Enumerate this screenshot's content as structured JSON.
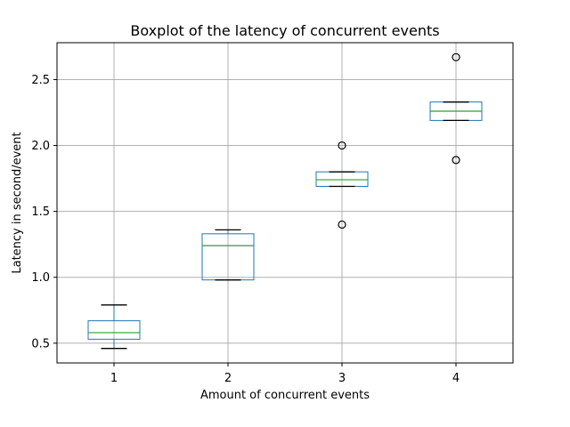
{
  "chart_data": {
    "type": "boxplot",
    "title": "Boxplot of the latency of concurrent events",
    "xlabel": "Amount of concurrent events",
    "ylabel": "Latency in second/event",
    "categories": [
      "1",
      "2",
      "3",
      "4"
    ],
    "ylim": [
      0.35,
      2.78
    ],
    "yticks": [
      0.5,
      1.0,
      1.5,
      2.0,
      2.5
    ],
    "ytick_labels": [
      "0.5",
      "1.0",
      "1.5",
      "2.0",
      "2.5"
    ],
    "grid": true,
    "boxes": [
      {
        "category": "1",
        "whisker_low": 0.46,
        "q1": 0.53,
        "median": 0.58,
        "q3": 0.67,
        "whisker_high": 0.79,
        "outliers": []
      },
      {
        "category": "2",
        "whisker_low": 0.98,
        "q1": 0.98,
        "median": 1.24,
        "q3": 1.33,
        "whisker_high": 1.36,
        "outliers": []
      },
      {
        "category": "3",
        "whisker_low": 1.69,
        "q1": 1.69,
        "median": 1.74,
        "q3": 1.8,
        "whisker_high": 1.8,
        "outliers": [
          2.0,
          1.4
        ]
      },
      {
        "category": "4",
        "whisker_low": 2.19,
        "q1": 2.19,
        "median": 2.26,
        "q3": 2.33,
        "whisker_high": 2.33,
        "outliers": [
          2.67,
          1.89
        ]
      }
    ],
    "colors": {
      "box": "#1f77b4",
      "median": "#2ca02c",
      "whisker": "#000000",
      "grid": "#b0b0b0"
    }
  }
}
